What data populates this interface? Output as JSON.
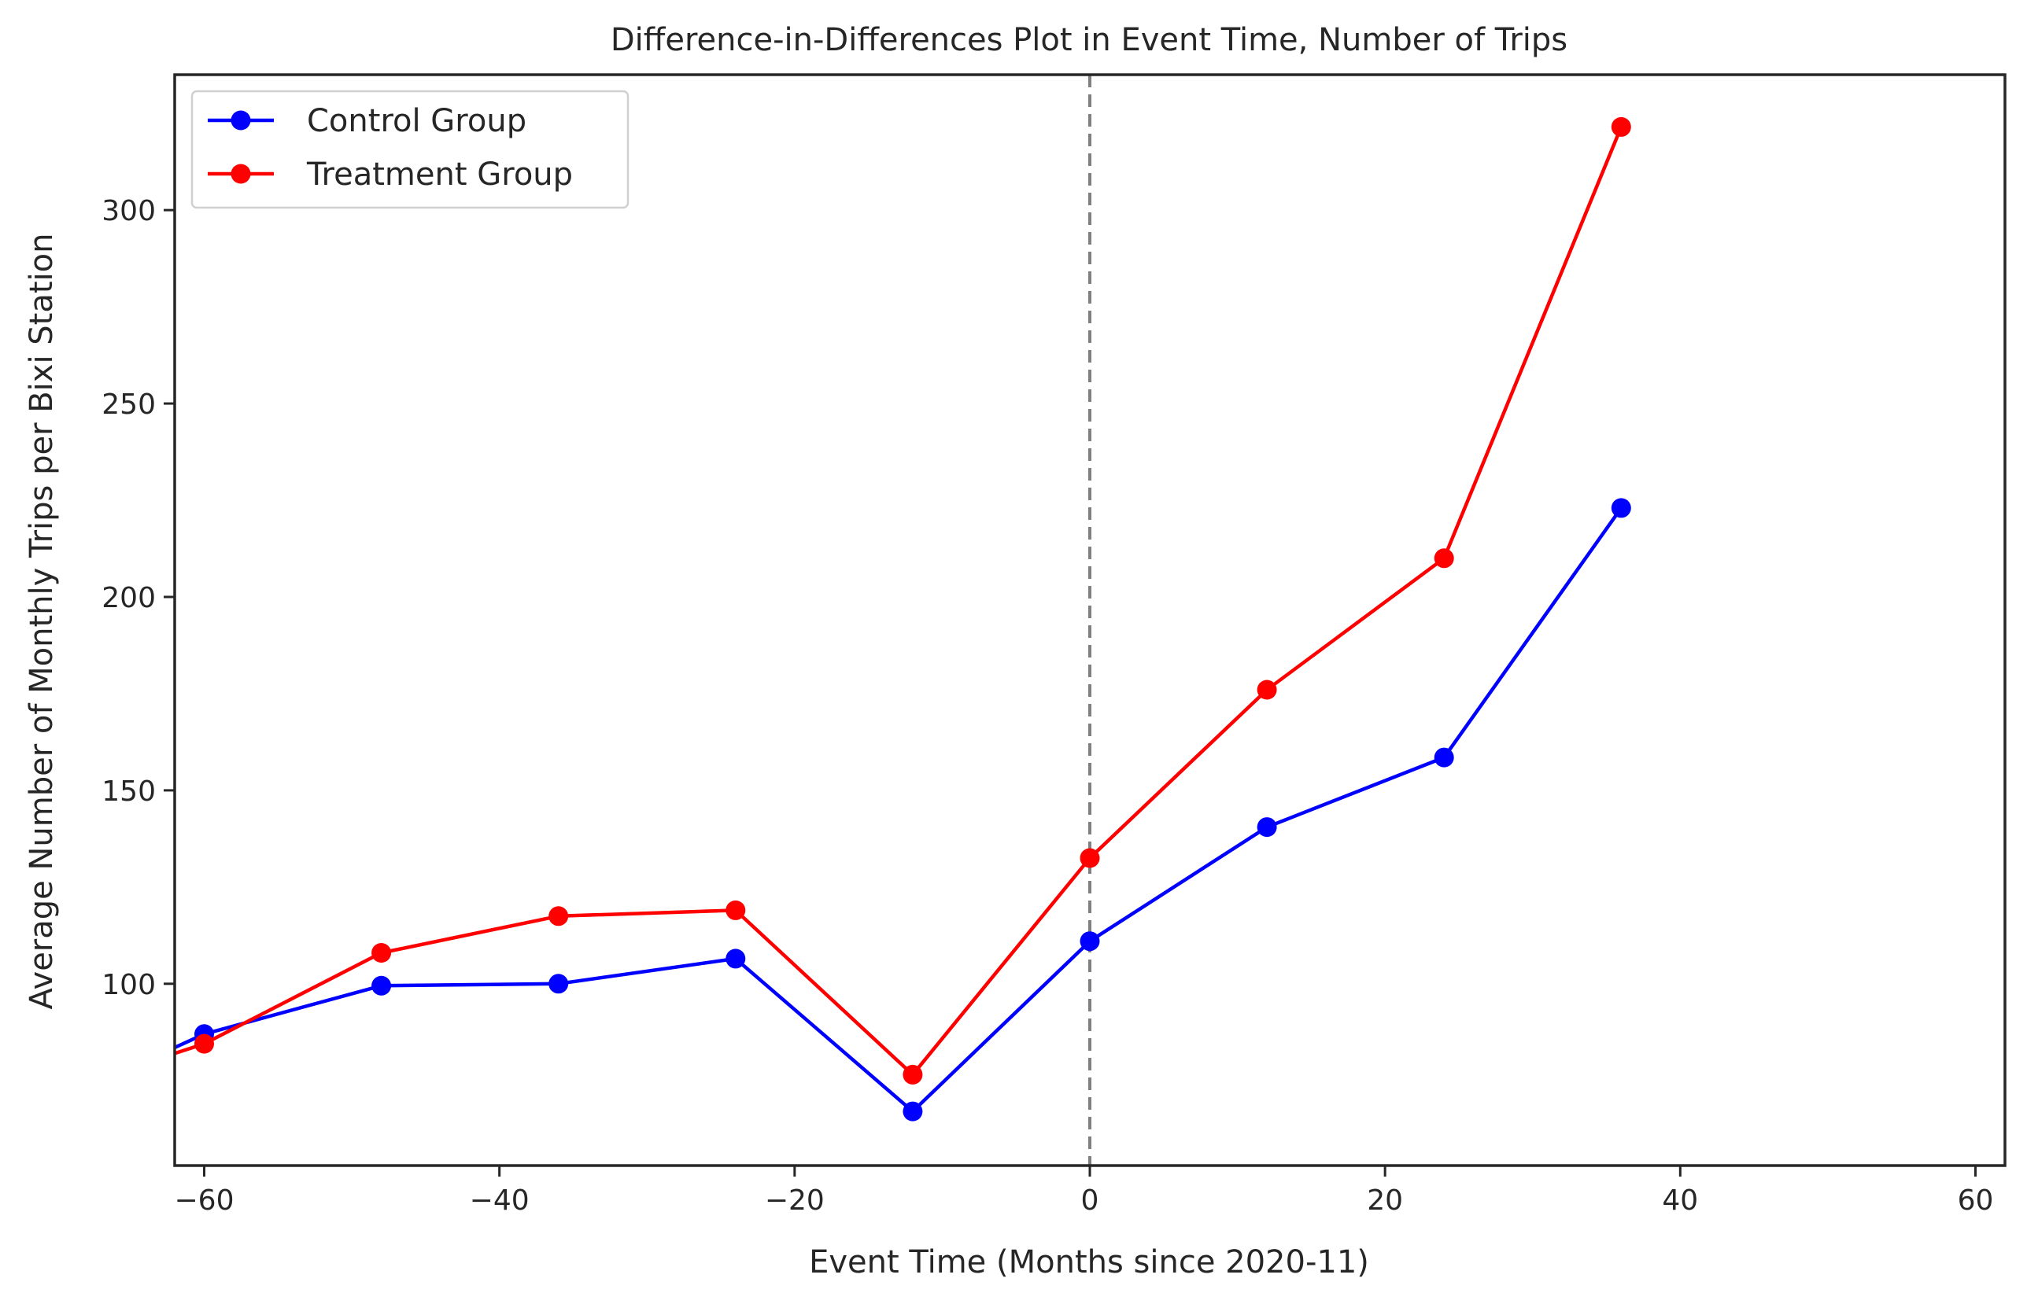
{
  "chart_data": {
    "type": "line",
    "title": "Difference-in-Differences Plot in Event Time, Number of Trips",
    "xlabel": "Event Time (Months since 2020-11)",
    "ylabel": "Average Number of Monthly Trips per Bixi Station",
    "xlim": [
      -62,
      62
    ],
    "ylim": [
      53,
      335
    ],
    "xticks": [
      -60,
      -40,
      -20,
      0,
      20,
      40,
      60
    ],
    "xtick_labels": [
      "−60",
      "−40",
      "−20",
      "0",
      "20",
      "40",
      "60"
    ],
    "yticks": [
      100,
      150,
      200,
      250,
      300
    ],
    "ytick_labels": [
      "100",
      "150",
      "200",
      "250",
      "300"
    ],
    "grid": false,
    "legend": "top-left",
    "vline": {
      "x": 0,
      "color": "#808080",
      "style": "dashed"
    },
    "series": [
      {
        "name": "Control Group",
        "color": "#0000ff",
        "line_start": {
          "x": -62,
          "y": 83.5
        },
        "x": [
          -60,
          -48,
          -36,
          -24,
          -12,
          0,
          12,
          24,
          36
        ],
        "y": [
          87,
          99.5,
          100,
          106.5,
          67,
          111,
          140.5,
          158.5,
          223
        ]
      },
      {
        "name": "Treatment Group",
        "color": "#ff0000",
        "line_start": {
          "x": -62,
          "y": 82
        },
        "x": [
          -60,
          -48,
          -36,
          -24,
          -12,
          0,
          12,
          24,
          36
        ],
        "y": [
          84.5,
          108,
          117.5,
          119,
          76.5,
          132.5,
          176,
          210,
          321.5
        ]
      }
    ]
  }
}
